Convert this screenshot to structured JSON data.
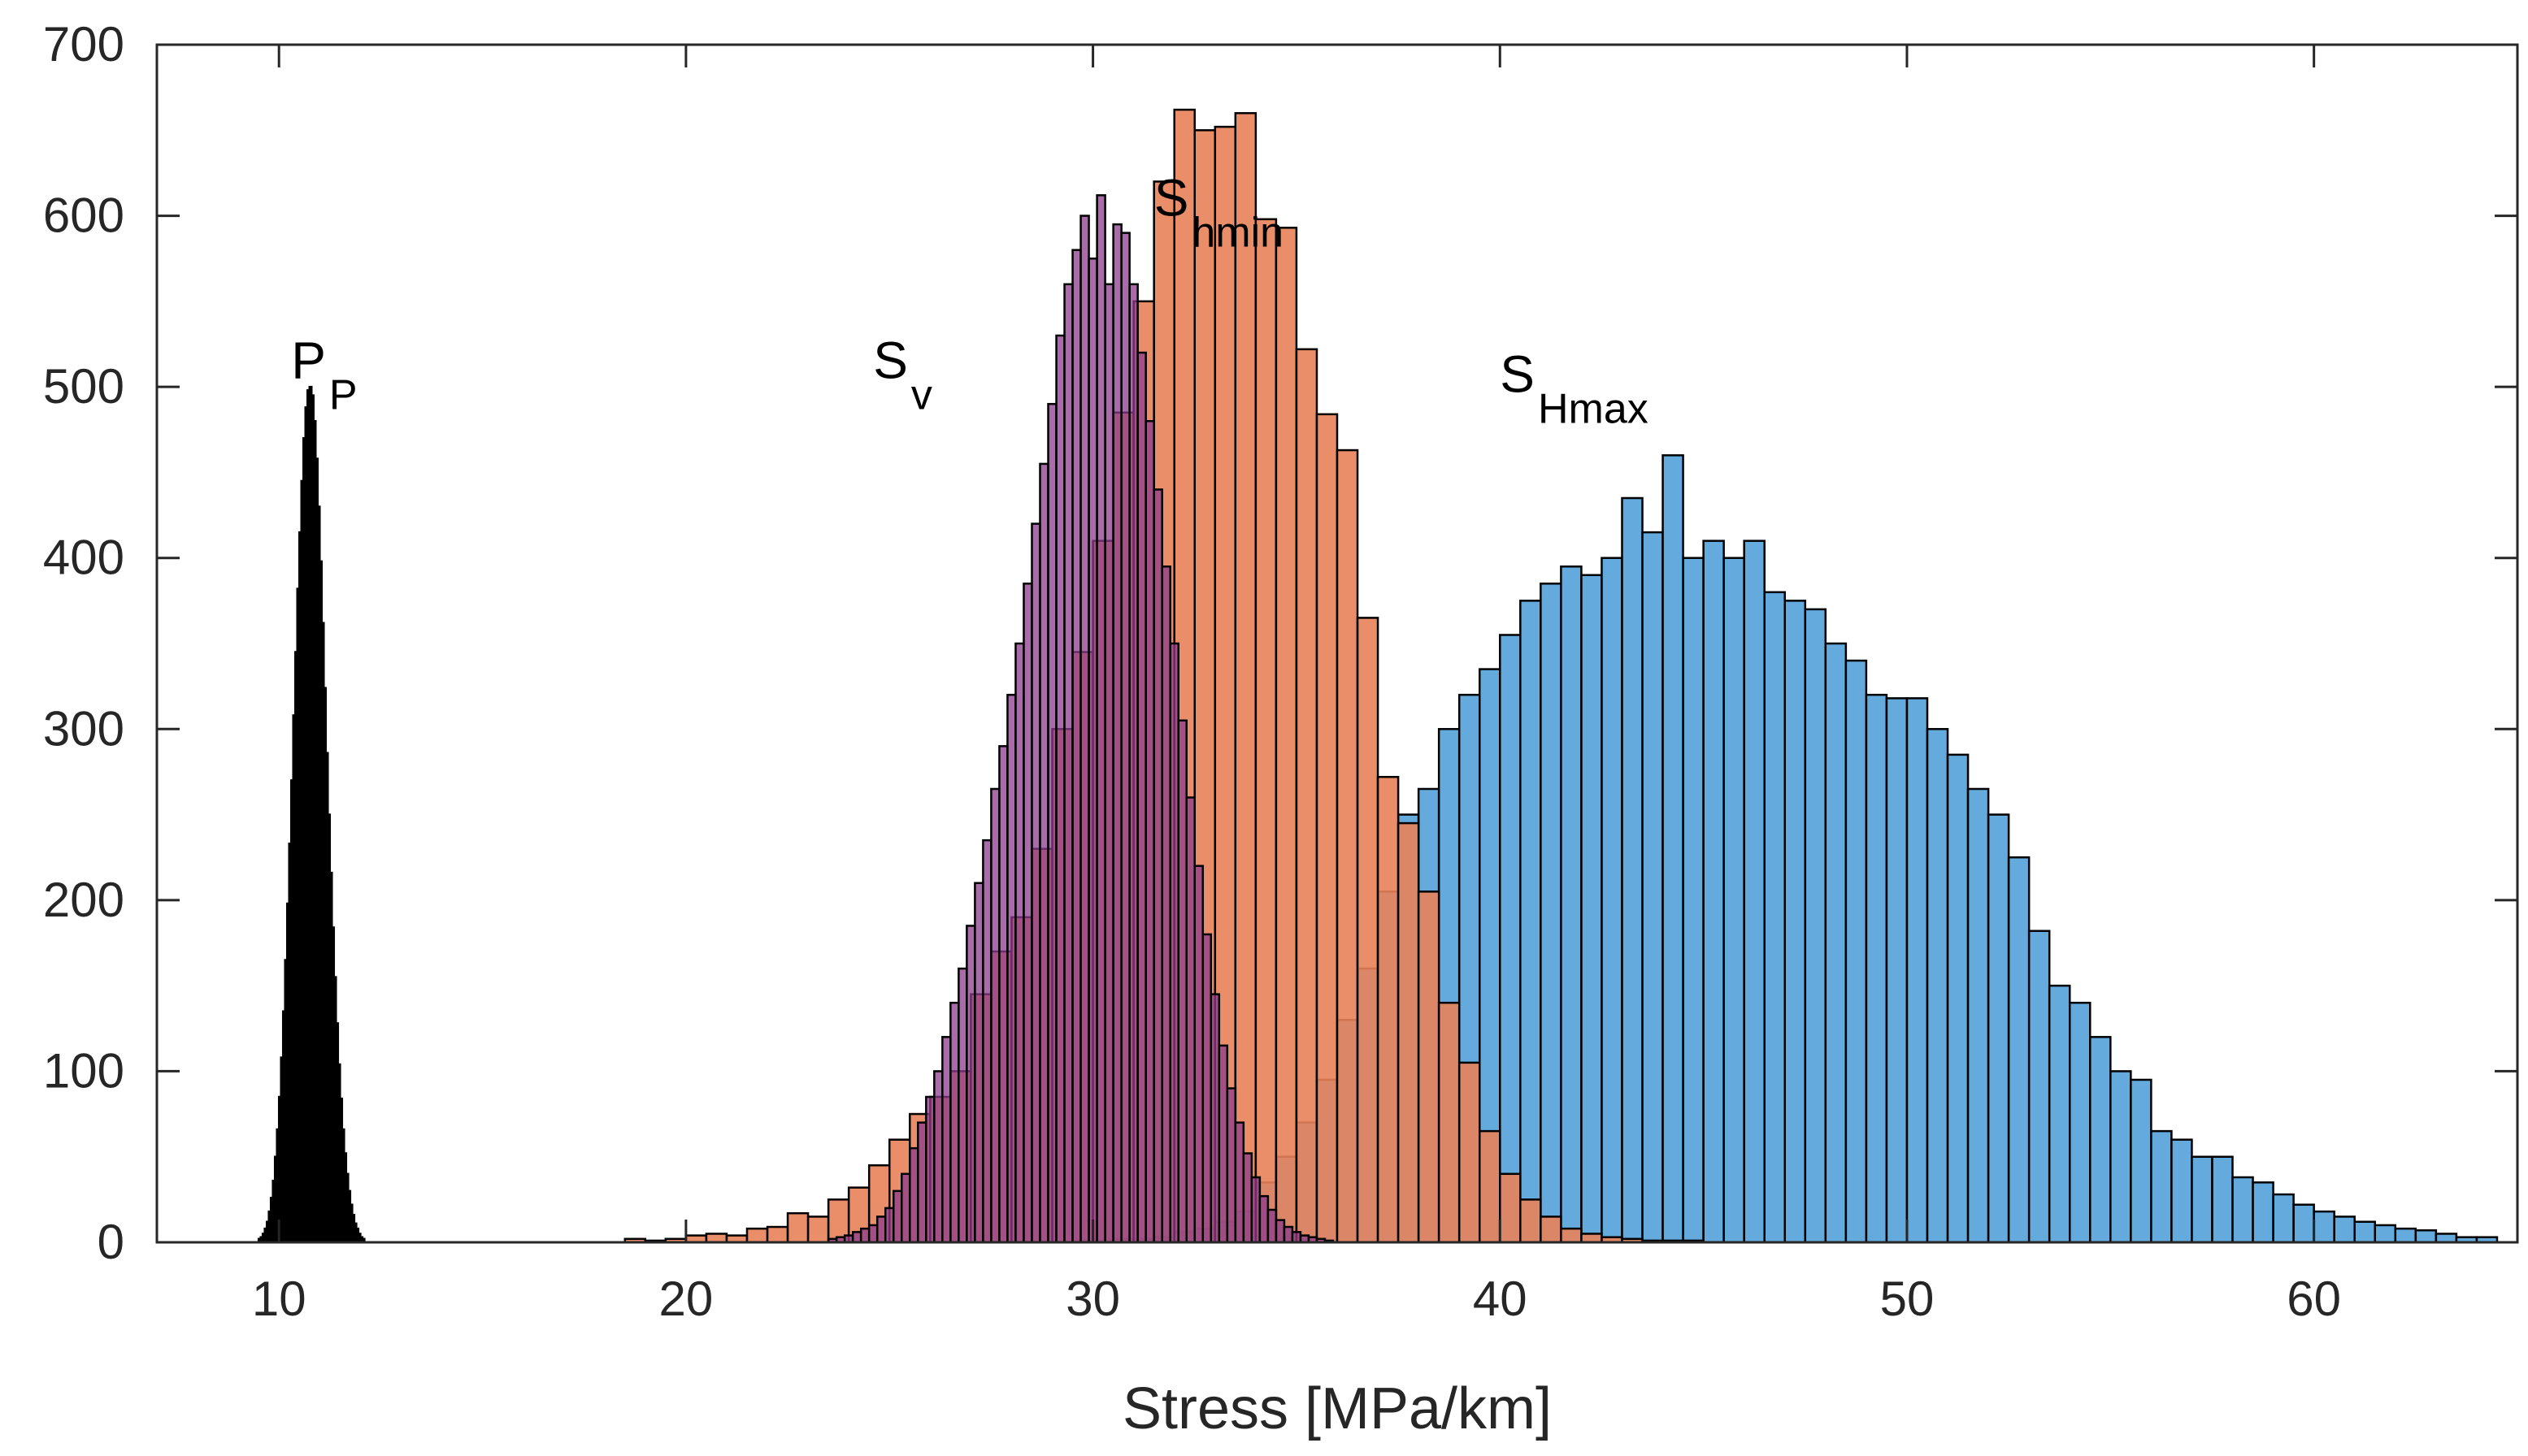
{
  "chart_data": {
    "type": "histogram",
    "title": "",
    "xlabel": "Stress [MPa/km]",
    "ylabel": "",
    "xlim": [
      7,
      65
    ],
    "ylim": [
      0,
      700
    ],
    "xticks": [
      10,
      20,
      30,
      40,
      50,
      60
    ],
    "yticks": [
      0,
      100,
      200,
      300,
      400,
      500,
      600,
      700
    ],
    "grid": false,
    "legend": "none",
    "series": [
      {
        "name": "SHmax",
        "label_main": "S",
        "label_sub": "Hmax",
        "color": "#4a9bd6",
        "opacity": 0.85,
        "bin_start": 29.5,
        "bin_width": 0.5,
        "values": [
          1,
          1,
          2,
          2,
          3,
          6,
          8,
          12,
          18,
          35,
          50,
          70,
          95,
          130,
          160,
          205,
          250,
          265,
          300,
          320,
          335,
          355,
          375,
          385,
          395,
          390,
          400,
          435,
          415,
          460,
          400,
          410,
          400,
          410,
          380,
          375,
          370,
          350,
          340,
          320,
          318,
          318,
          300,
          285,
          265,
          250,
          225,
          182,
          150,
          140,
          120,
          100,
          95,
          65,
          60,
          50,
          50,
          38,
          35,
          28,
          22,
          18,
          15,
          12,
          10,
          8,
          7,
          5,
          3,
          3
        ]
      },
      {
        "name": "Shmin",
        "label_main": "S",
        "label_sub": "hmin",
        "color": "#e8825a",
        "opacity": 0.9,
        "bin_start": 18.5,
        "bin_width": 0.5,
        "values": [
          2,
          1,
          2,
          4,
          5,
          4,
          8,
          9,
          17,
          15,
          25,
          32,
          45,
          60,
          75,
          85,
          100,
          145,
          170,
          190,
          230,
          300,
          345,
          410,
          485,
          550,
          620,
          662,
          650,
          652,
          660,
          598,
          593,
          522,
          484,
          463,
          365,
          272,
          245,
          205,
          140,
          105,
          65,
          40,
          25,
          15,
          8,
          5,
          3,
          2,
          1,
          1,
          1
        ]
      },
      {
        "name": "Sv",
        "label_main": "S",
        "label_sub": "v",
        "color": "#8e3a8e",
        "opacity": 0.75,
        "bin_start": 23.5,
        "bin_width": 0.2,
        "values": [
          2,
          3,
          4,
          6,
          8,
          10,
          15,
          20,
          30,
          40,
          55,
          70,
          85,
          100,
          120,
          140,
          160,
          185,
          210,
          235,
          265,
          290,
          320,
          350,
          385,
          420,
          455,
          490,
          530,
          560,
          580,
          600,
          575,
          612,
          560,
          595,
          590,
          560,
          520,
          480,
          440,
          395,
          350,
          305,
          260,
          220,
          180,
          145,
          115,
          90,
          70,
          52,
          38,
          27,
          19,
          13,
          9,
          6,
          4,
          3,
          2,
          1
        ]
      },
      {
        "name": "PP",
        "label_main": "P",
        "label_sub": "P",
        "color": "#000000",
        "opacity": 1,
        "bin_start": 9.5,
        "bin_width": 0.05,
        "values": [
          2,
          3,
          5,
          8,
          12,
          18,
          26,
          36,
          50,
          66,
          85,
          108,
          135,
          165,
          198,
          233,
          270,
          308,
          345,
          382,
          415,
          445,
          470,
          488,
          498,
          500,
          495,
          480,
          458,
          430,
          398,
          362,
          324,
          286,
          250,
          216,
          184,
          155,
          128,
          104,
          84,
          66,
          52,
          40,
          30,
          22,
          16,
          11,
          8,
          5,
          3,
          2
        ]
      }
    ]
  }
}
